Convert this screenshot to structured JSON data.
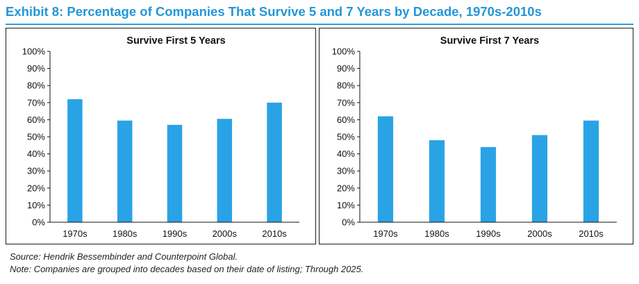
{
  "exhibit": {
    "title": "Exhibit 8: Percentage of Companies That Survive 5 and 7 Years by Decade, 1970s-2010s",
    "accent_color": "#2a9fdf"
  },
  "chart_data": [
    {
      "type": "bar",
      "title": "Survive First 5 Years",
      "categories": [
        "1970s",
        "1980s",
        "1990s",
        "2000s",
        "2010s"
      ],
      "values": [
        72,
        59.5,
        57,
        60.5,
        70
      ],
      "y_tick_labels": [
        "0%",
        "10%",
        "20%",
        "30%",
        "40%",
        "50%",
        "60%",
        "70%",
        "80%",
        "90%",
        "100%"
      ],
      "ylim": [
        0,
        100
      ],
      "xlabel": "",
      "ylabel": "",
      "grid": false,
      "bar_color": "#2aa3e6"
    },
    {
      "type": "bar",
      "title": "Survive First 7 Years",
      "categories": [
        "1970s",
        "1980s",
        "1990s",
        "2000s",
        "2010s"
      ],
      "values": [
        62,
        48,
        44,
        51,
        59.5
      ],
      "y_tick_labels": [
        "0%",
        "10%",
        "20%",
        "30%",
        "40%",
        "50%",
        "60%",
        "70%",
        "80%",
        "90%",
        "100%"
      ],
      "ylim": [
        0,
        100
      ],
      "xlabel": "",
      "ylabel": "",
      "grid": false,
      "bar_color": "#2aa3e6"
    }
  ],
  "footnotes": {
    "source": "Source: Hendrik Bessembinder and Counterpoint Global.",
    "note": "Note: Companies are grouped into decades based on their date of listing; Through 2025."
  }
}
